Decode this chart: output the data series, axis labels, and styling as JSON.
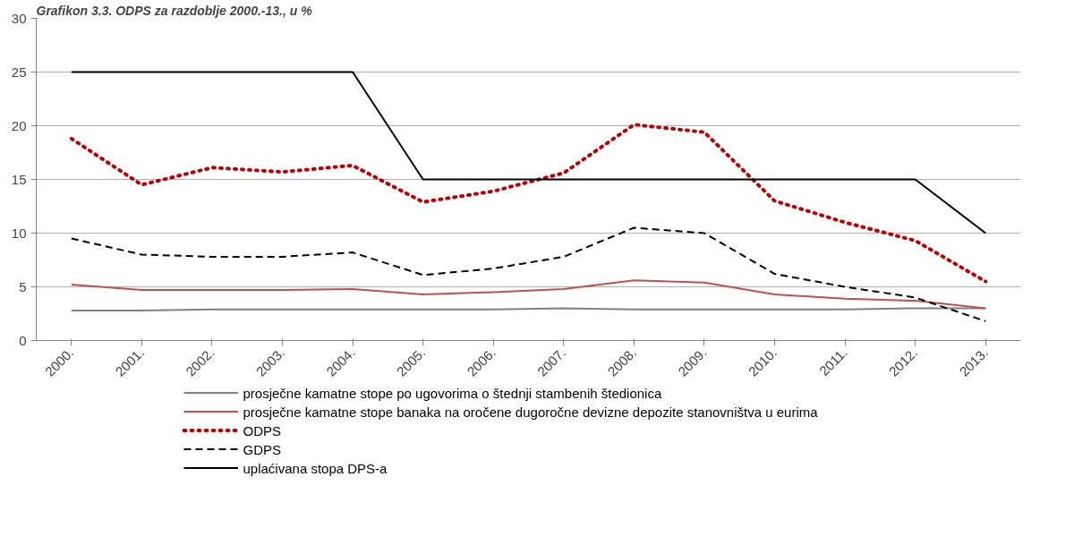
{
  "chart_data": {
    "type": "line",
    "title": "Grafikon 3.3. ODPS za razdoblje 2000.-13., u %",
    "categories": [
      "2000.",
      "2001.",
      "2002.",
      "2003.",
      "2004.",
      "2005.",
      "2006.",
      "2007.",
      "2008.",
      "2009.",
      "2010.",
      "2011.",
      "2012.",
      "2013."
    ],
    "series": [
      {
        "name": "prosječne kamatne stope po ugovorima o štednji stambenih štedionica",
        "color": "#808080",
        "line_style": "solid",
        "values": [
          2.8,
          2.8,
          2.9,
          2.9,
          2.9,
          2.9,
          2.9,
          3.0,
          2.9,
          2.9,
          2.9,
          2.9,
          3.0,
          3.0
        ]
      },
      {
        "name": "prosječne kamatne stope banaka na oročene dugoročne devizne depozite stanovništva u eurima",
        "color": "#c0504d",
        "line_style": "solid",
        "values": [
          5.2,
          4.7,
          4.7,
          4.7,
          4.8,
          4.3,
          4.5,
          4.8,
          5.6,
          5.4,
          4.3,
          3.9,
          3.7,
          3.0
        ]
      },
      {
        "name": "ODPS",
        "color": "#c00000",
        "line_style": "dotted",
        "values": [
          18.8,
          14.5,
          16.1,
          15.7,
          16.3,
          12.9,
          13.9,
          15.6,
          20.1,
          19.4,
          13.0,
          11.0,
          9.3,
          5.5
        ]
      },
      {
        "name": "GDPS",
        "color": "#000000",
        "line_style": "dashed",
        "values": [
          9.5,
          8.0,
          7.8,
          7.8,
          8.2,
          6.1,
          6.7,
          7.8,
          10.5,
          10.0,
          6.2,
          5.0,
          4.0,
          1.8
        ]
      },
      {
        "name": "uplaćivana stopa DPS-a",
        "color": "#000000",
        "line_style": "solid",
        "values": [
          25,
          25,
          25,
          25,
          25,
          15,
          15,
          15,
          15,
          15,
          15,
          15,
          15,
          10
        ]
      }
    ],
    "ylim": [
      0,
      30
    ],
    "yticks": [
      0,
      5,
      10,
      15,
      20,
      25,
      30
    ],
    "grid": "y",
    "legend": "bottom",
    "marker": "none"
  }
}
